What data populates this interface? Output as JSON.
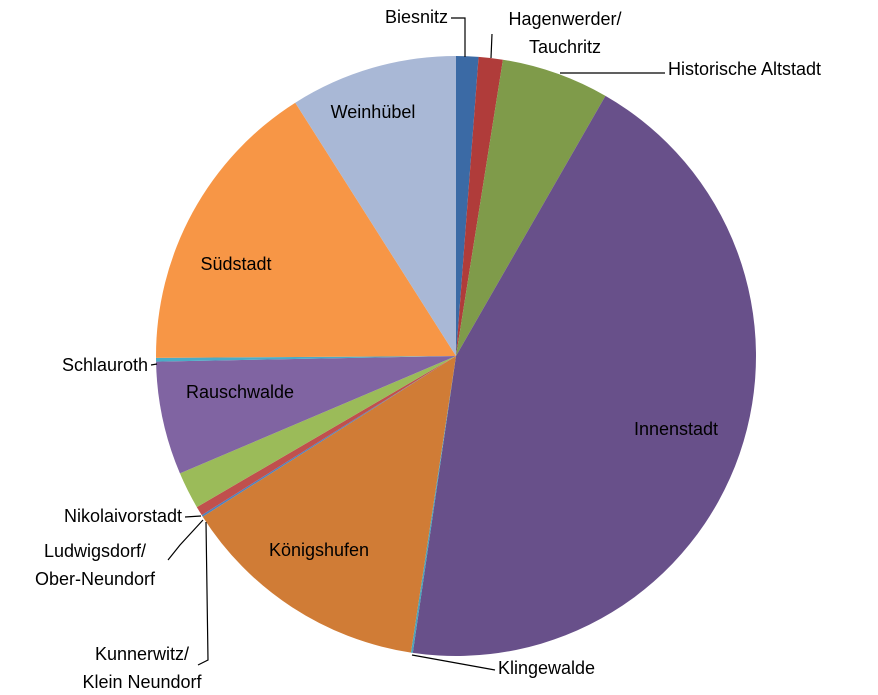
{
  "chart_data": {
    "type": "pie",
    "categories": [
      "Biesnitz",
      "Hagenwerder/\nTauchritz",
      "Historische Altstadt",
      "Innenstadt",
      "Klingewalde",
      "Königshufen",
      "Kunnerwitz/\nKlein Neundorf",
      "Ludwigsdorf/\nOber-Neundorf",
      "Nikolaivorstadt",
      "Rauschwalde",
      "Schlauroth",
      "Südstadt",
      "Weinhübel"
    ],
    "values": [
      1.2,
      1.3,
      5.8,
      44.0,
      0.1,
      13.6,
      0.1,
      0.5,
      2.0,
      6.1,
      0.2,
      16.1,
      9.0
    ],
    "colors": [
      "#3b6aa5",
      "#b03c3a",
      "#7f9b4a",
      "#68508a",
      "#4aa3bb",
      "#d07c36",
      "#4f81bd",
      "#c0504d",
      "#9bbb59",
      "#8064a2",
      "#4bacc6",
      "#f79646",
      "#a9b8d6"
    ]
  }
}
